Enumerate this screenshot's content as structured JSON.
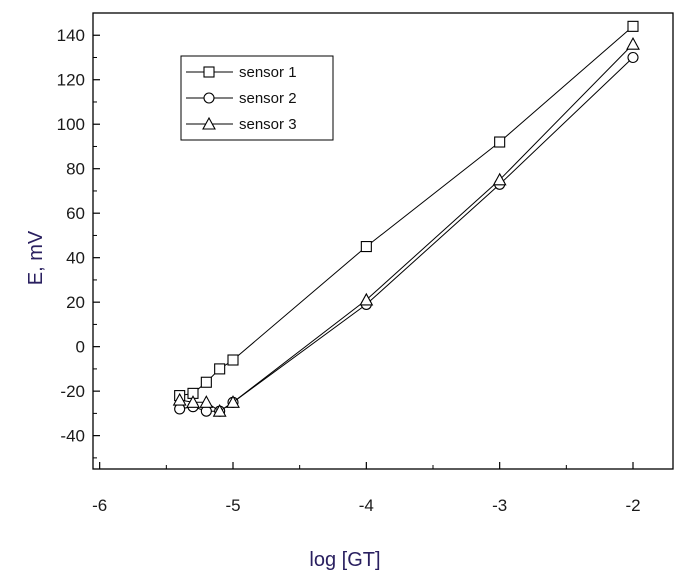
{
  "chart_data": {
    "type": "line",
    "title": "",
    "xlabel": "log [GT]",
    "ylabel": "E, mV",
    "xlim": [
      -6.05,
      -1.7
    ],
    "ylim": [
      -55,
      150
    ],
    "x_ticks": [
      -6,
      -5,
      -4,
      -3,
      -2
    ],
    "x_tick_labels": [
      "-6",
      "-5",
      "-4",
      "-3",
      "-2"
    ],
    "y_ticks": [
      -40,
      -20,
      0,
      20,
      40,
      60,
      80,
      100,
      120,
      140
    ],
    "y_tick_labels": [
      "-40",
      "-20",
      "0",
      "20",
      "40",
      "60",
      "80",
      "100",
      "120",
      "140"
    ],
    "grid": false,
    "legend_position": "top-left",
    "series": [
      {
        "name": "sensor 1",
        "marker": "square",
        "points": [
          {
            "x": -5.4,
            "y": -22
          },
          {
            "x": -5.3,
            "y": -21
          },
          {
            "x": -5.2,
            "y": -16
          },
          {
            "x": -5.1,
            "y": -10
          },
          {
            "x": -5.0,
            "y": -6
          },
          {
            "x": -4.0,
            "y": 45
          },
          {
            "x": -3.0,
            "y": 92
          },
          {
            "x": -2.0,
            "y": 144
          }
        ]
      },
      {
        "name": "sensor 2",
        "marker": "circle",
        "points": [
          {
            "x": -5.4,
            "y": -28
          },
          {
            "x": -5.3,
            "y": -27
          },
          {
            "x": -5.2,
            "y": -29
          },
          {
            "x": -5.1,
            "y": -29
          },
          {
            "x": -5.0,
            "y": -25
          },
          {
            "x": -4.0,
            "y": 19
          },
          {
            "x": -3.0,
            "y": 73
          },
          {
            "x": -2.0,
            "y": 130
          }
        ]
      },
      {
        "name": "sensor 3",
        "marker": "triangle",
        "points": [
          {
            "x": -5.4,
            "y": -24
          },
          {
            "x": -5.3,
            "y": -25
          },
          {
            "x": -5.2,
            "y": -25
          },
          {
            "x": -5.1,
            "y": -29
          },
          {
            "x": -5.0,
            "y": -25
          },
          {
            "x": -4.0,
            "y": 21
          },
          {
            "x": -3.0,
            "y": 75
          },
          {
            "x": -2.0,
            "y": 136
          }
        ]
      }
    ]
  }
}
